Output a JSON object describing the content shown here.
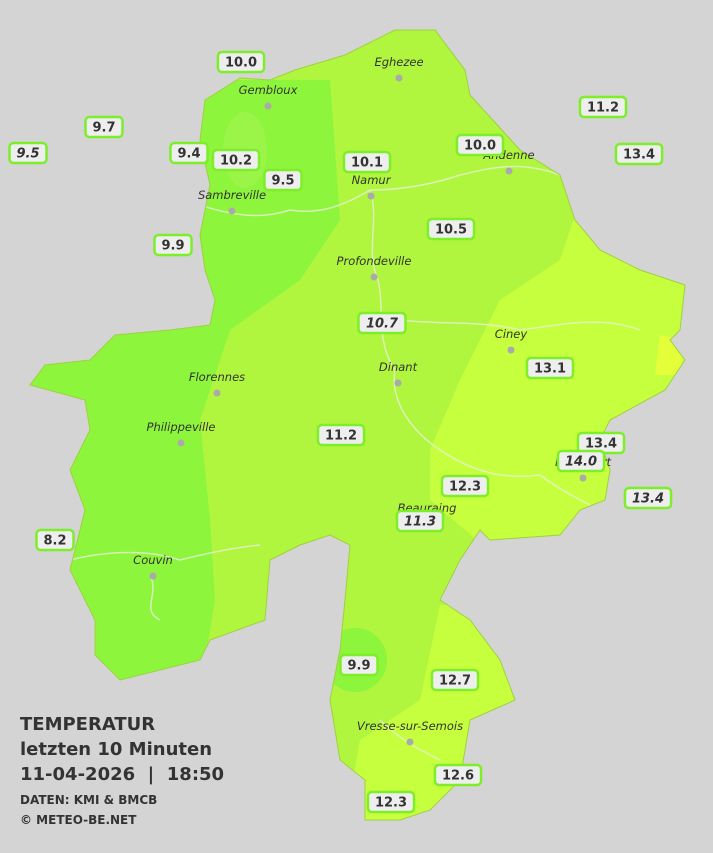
{
  "header": {
    "title": "TEMPERATUR",
    "subtitle": "letzten 10 Minuten",
    "datetime": "11-04-2026  |  18:50",
    "source": "DATEN: KMI & BMCB",
    "copyright": "© METEO-BE.NET"
  },
  "cities": [
    "Gembloux",
    "Eghezee",
    "Andenne",
    "Namur",
    "Sambreville",
    "Profondeville",
    "Ciney",
    "Dinant",
    "Florennes",
    "Philippeville",
    "Rochefort",
    "Beauraing",
    "Couvin",
    "Vresse-sur-Semois"
  ],
  "stations": [
    "10.0",
    "9.7",
    "9.5",
    "9.4",
    "10.2",
    "9.5",
    "10.1",
    "10.0",
    "11.2",
    "13.4",
    "9.9",
    "10.5",
    "10.7",
    "13.1",
    "11.2",
    "13.4",
    "14.0",
    "12.3",
    "13.4",
    "11.3",
    "8.2",
    "9.9",
    "12.7",
    "12.6",
    "12.3"
  ]
}
